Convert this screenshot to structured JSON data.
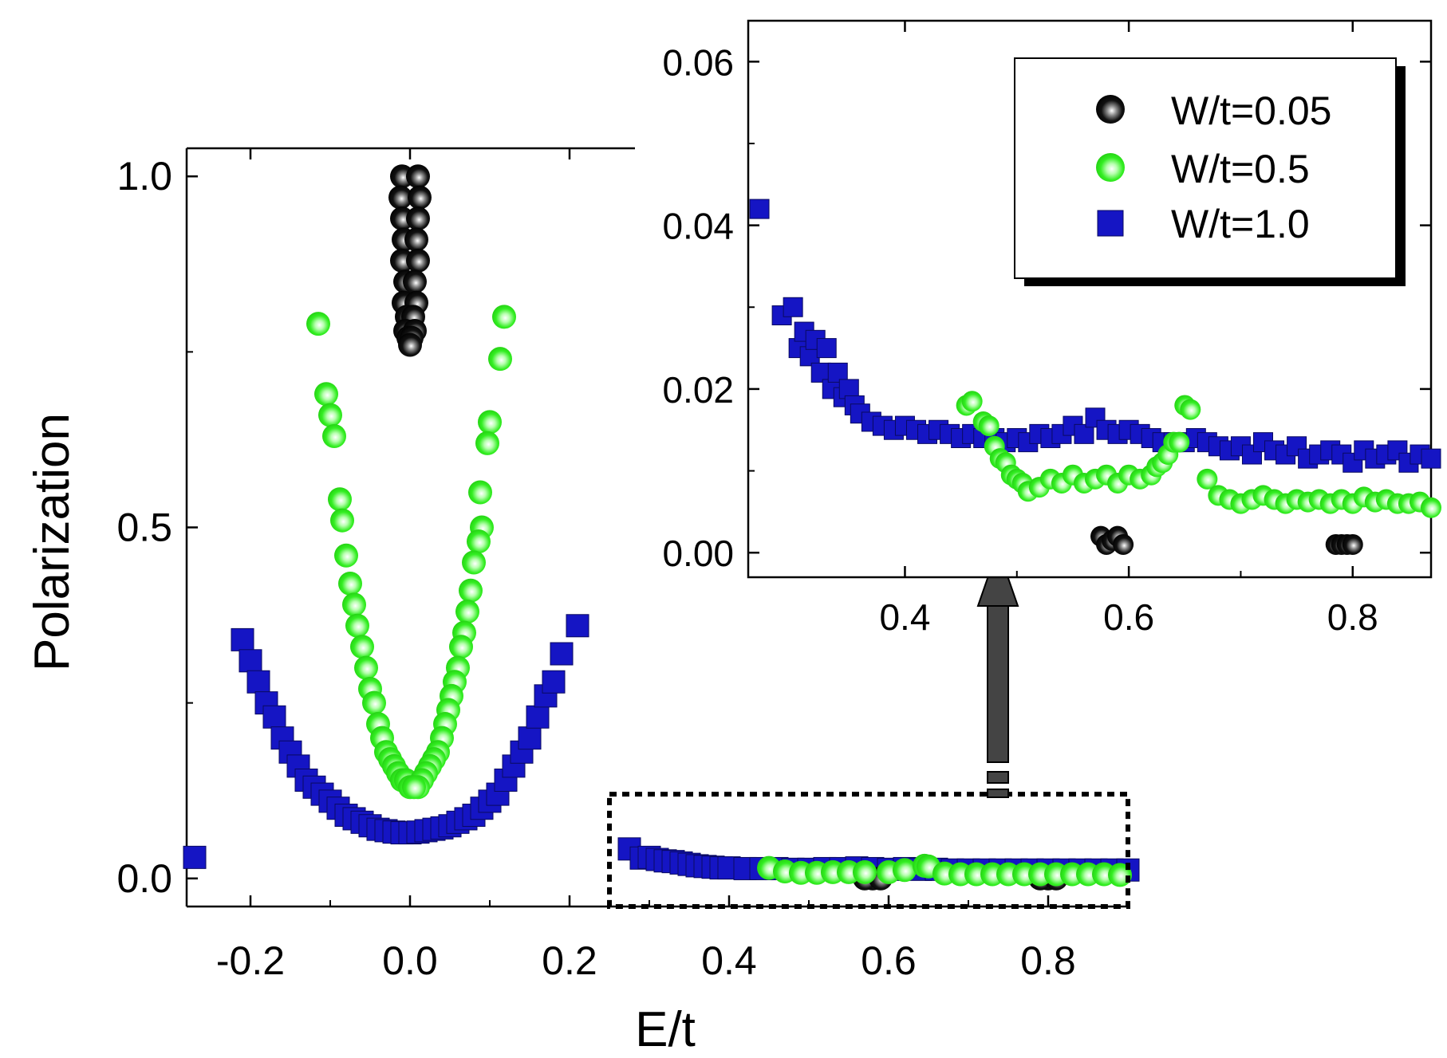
{
  "chart_data": [
    {
      "id": "main",
      "type": "scatter",
      "xlabel": "E/t",
      "ylabel": "Polarization",
      "xlim": [
        -0.28,
        0.9
      ],
      "ylim": [
        -0.04,
        1.04
      ],
      "xticks": [
        -0.2,
        0.0,
        0.2,
        0.4,
        0.6,
        0.8
      ],
      "xtick_labels": [
        "-0.2",
        "0.0",
        "0.2",
        "0.4",
        "0.6",
        "0.8"
      ],
      "yticks": [
        0.0,
        0.5,
        1.0
      ],
      "ytick_labels": [
        "0.0",
        "0.5",
        "1.0"
      ],
      "zoom_box": {
        "x": [
          0.25,
          0.9
        ],
        "y": [
          -0.04,
          0.12
        ]
      },
      "series": [
        {
          "name": "W/t=0.05",
          "marker": "circle",
          "color": "#000000",
          "x": [
            -0.01,
            0.01,
            -0.012,
            0.012,
            -0.01,
            0.01,
            -0.008,
            0.008,
            -0.01,
            0.01,
            -0.006,
            0.006,
            -0.008,
            0.008,
            -0.004,
            0.004,
            -0.006,
            0.006,
            -0.002,
            0.002,
            0.0,
            0.58,
            0.57,
            0.59,
            0.8,
            0.79,
            0.81
          ],
          "y": [
            1.0,
            1.0,
            0.97,
            0.97,
            0.94,
            0.94,
            0.91,
            0.91,
            0.88,
            0.88,
            0.85,
            0.85,
            0.82,
            0.82,
            0.8,
            0.8,
            0.78,
            0.78,
            0.77,
            0.77,
            0.76,
            0.0,
            0.0,
            0.0,
            0.0,
            0.0,
            0.0
          ]
        },
        {
          "name": "W/t=0.5",
          "marker": "circle",
          "color": "#22ee11",
          "x": [
            -0.115,
            0.118,
            -0.105,
            0.113,
            -0.1,
            0.1,
            -0.095,
            0.097,
            -0.088,
            0.088,
            -0.085,
            0.09,
            -0.08,
            0.086,
            -0.075,
            0.08,
            -0.07,
            0.076,
            -0.066,
            0.072,
            -0.06,
            0.068,
            -0.055,
            0.064,
            -0.05,
            0.06,
            -0.045,
            0.056,
            -0.04,
            0.052,
            -0.035,
            0.048,
            -0.03,
            0.044,
            -0.025,
            0.04,
            -0.02,
            0.035,
            -0.015,
            0.03,
            -0.01,
            0.025,
            -0.005,
            0.02,
            0.0,
            0.015,
            0.01,
            0.005,
            0.45,
            0.47,
            0.49,
            0.51,
            0.53,
            0.55,
            0.57,
            0.6,
            0.62,
            0.645,
            0.65,
            0.67,
            0.69,
            0.71,
            0.73,
            0.75,
            0.77,
            0.79,
            0.81,
            0.83,
            0.85,
            0.87,
            0.89
          ],
          "y": [
            0.79,
            0.8,
            0.69,
            0.74,
            0.66,
            0.65,
            0.63,
            0.62,
            0.54,
            0.55,
            0.51,
            0.5,
            0.46,
            0.48,
            0.42,
            0.45,
            0.39,
            0.41,
            0.36,
            0.38,
            0.33,
            0.35,
            0.3,
            0.33,
            0.27,
            0.3,
            0.25,
            0.28,
            0.22,
            0.26,
            0.2,
            0.24,
            0.18,
            0.22,
            0.17,
            0.2,
            0.16,
            0.18,
            0.15,
            0.17,
            0.14,
            0.16,
            0.14,
            0.15,
            0.13,
            0.14,
            0.13,
            0.13,
            0.015,
            0.01,
            0.008,
            0.008,
            0.009,
            0.009,
            0.009,
            0.009,
            0.012,
            0.018,
            0.017,
            0.007,
            0.006,
            0.006,
            0.006,
            0.006,
            0.006,
            0.006,
            0.006,
            0.006,
            0.006,
            0.006,
            0.005
          ]
        },
        {
          "name": "W/t=1.0",
          "marker": "square",
          "color": "#1515c4",
          "x": [
            -0.27,
            -0.21,
            -0.2,
            -0.19,
            -0.18,
            -0.17,
            -0.16,
            -0.15,
            -0.14,
            -0.13,
            -0.12,
            -0.11,
            -0.1,
            -0.09,
            -0.08,
            -0.07,
            -0.06,
            -0.05,
            -0.04,
            -0.03,
            -0.02,
            -0.01,
            0.0,
            0.01,
            0.02,
            0.03,
            0.04,
            0.05,
            0.06,
            0.07,
            0.08,
            0.09,
            0.1,
            0.11,
            0.12,
            0.13,
            0.14,
            0.15,
            0.16,
            0.17,
            0.18,
            0.19,
            0.21,
            0.275,
            0.29,
            0.3,
            0.31,
            0.32,
            0.33,
            0.34,
            0.35,
            0.36,
            0.37,
            0.38,
            0.39,
            0.4,
            0.42,
            0.44,
            0.46,
            0.48,
            0.5,
            0.52,
            0.54,
            0.56,
            0.58,
            0.6,
            0.62,
            0.64,
            0.66,
            0.68,
            0.7,
            0.72,
            0.74,
            0.76,
            0.78,
            0.8,
            0.82,
            0.84,
            0.86,
            0.88,
            0.9
          ],
          "y": [
            0.03,
            0.34,
            0.31,
            0.28,
            0.25,
            0.23,
            0.2,
            0.18,
            0.16,
            0.14,
            0.13,
            0.12,
            0.11,
            0.1,
            0.09,
            0.085,
            0.08,
            0.075,
            0.07,
            0.068,
            0.066,
            0.065,
            0.065,
            0.066,
            0.068,
            0.07,
            0.072,
            0.075,
            0.08,
            0.085,
            0.09,
            0.1,
            0.11,
            0.12,
            0.14,
            0.16,
            0.18,
            0.2,
            0.23,
            0.26,
            0.28,
            0.32,
            0.36,
            0.042,
            0.029,
            0.03,
            0.027,
            0.025,
            0.024,
            0.022,
            0.02,
            0.018,
            0.017,
            0.016,
            0.015,
            0.015,
            0.014,
            0.014,
            0.014,
            0.013,
            0.013,
            0.014,
            0.014,
            0.015,
            0.014,
            0.013,
            0.014,
            0.013,
            0.013,
            0.012,
            0.012,
            0.012,
            0.012,
            0.012,
            0.012,
            0.012,
            0.012,
            0.012,
            0.012,
            0.012,
            0.012
          ]
        }
      ]
    },
    {
      "id": "inset",
      "type": "scatter",
      "xlim": [
        0.26,
        0.87
      ],
      "ylim": [
        -0.003,
        0.065
      ],
      "xticks": [
        0.4,
        0.6,
        0.8
      ],
      "xtick_labels": [
        "0.4",
        "0.6",
        "0.8"
      ],
      "yticks": [
        0.0,
        0.02,
        0.04,
        0.06
      ],
      "ytick_labels": [
        "0.00",
        "0.02",
        "0.04",
        "0.06"
      ],
      "legend": {
        "position": "top-right",
        "entries": [
          "W/t=0.05",
          "W/t=0.5",
          "W/t=1.0"
        ]
      },
      "series": [
        {
          "name": "W/t=0.05",
          "marker": "circle",
          "color": "#000000",
          "x": [
            0.575,
            0.58,
            0.585,
            0.59,
            0.595,
            0.785,
            0.79,
            0.795,
            0.8
          ],
          "y": [
            0.002,
            0.001,
            0.0015,
            0.002,
            0.001,
            0.001,
            0.001,
            0.001,
            0.001
          ]
        },
        {
          "name": "W/t=0.5",
          "marker": "circle",
          "color": "#22ee11",
          "x": [
            0.455,
            0.46,
            0.47,
            0.475,
            0.48,
            0.485,
            0.49,
            0.495,
            0.5,
            0.505,
            0.51,
            0.52,
            0.53,
            0.54,
            0.55,
            0.56,
            0.57,
            0.58,
            0.59,
            0.6,
            0.61,
            0.62,
            0.625,
            0.63,
            0.635,
            0.64,
            0.645,
            0.65,
            0.655,
            0.67,
            0.68,
            0.69,
            0.7,
            0.71,
            0.72,
            0.73,
            0.74,
            0.75,
            0.76,
            0.77,
            0.78,
            0.79,
            0.8,
            0.81,
            0.82,
            0.83,
            0.84,
            0.85,
            0.86,
            0.87
          ],
          "y": [
            0.018,
            0.0185,
            0.016,
            0.0155,
            0.013,
            0.0115,
            0.011,
            0.0095,
            0.009,
            0.0085,
            0.0075,
            0.008,
            0.009,
            0.0085,
            0.0095,
            0.0085,
            0.009,
            0.0095,
            0.0085,
            0.0095,
            0.009,
            0.0095,
            0.0105,
            0.011,
            0.012,
            0.0135,
            0.0135,
            0.018,
            0.0175,
            0.009,
            0.007,
            0.0065,
            0.006,
            0.0065,
            0.007,
            0.0065,
            0.006,
            0.0065,
            0.0062,
            0.0065,
            0.006,
            0.0065,
            0.006,
            0.0068,
            0.0062,
            0.0065,
            0.006,
            0.006,
            0.0062,
            0.0055
          ]
        },
        {
          "name": "W/t=1.0",
          "marker": "square",
          "color": "#1515c4",
          "x": [
            0.27,
            0.29,
            0.3,
            0.305,
            0.31,
            0.315,
            0.32,
            0.325,
            0.33,
            0.335,
            0.34,
            0.345,
            0.35,
            0.355,
            0.36,
            0.37,
            0.38,
            0.39,
            0.4,
            0.41,
            0.42,
            0.43,
            0.44,
            0.45,
            0.46,
            0.47,
            0.48,
            0.49,
            0.5,
            0.51,
            0.52,
            0.53,
            0.54,
            0.55,
            0.56,
            0.57,
            0.58,
            0.59,
            0.6,
            0.61,
            0.62,
            0.63,
            0.64,
            0.65,
            0.66,
            0.67,
            0.68,
            0.69,
            0.7,
            0.71,
            0.72,
            0.73,
            0.74,
            0.75,
            0.76,
            0.77,
            0.78,
            0.79,
            0.8,
            0.81,
            0.82,
            0.83,
            0.84,
            0.85,
            0.86,
            0.87
          ],
          "y": [
            0.042,
            0.029,
            0.03,
            0.025,
            0.027,
            0.024,
            0.026,
            0.022,
            0.025,
            0.02,
            0.022,
            0.019,
            0.02,
            0.018,
            0.017,
            0.016,
            0.0155,
            0.015,
            0.0155,
            0.015,
            0.0145,
            0.015,
            0.0145,
            0.014,
            0.0145,
            0.014,
            0.014,
            0.0135,
            0.014,
            0.0135,
            0.0145,
            0.014,
            0.0145,
            0.0155,
            0.0145,
            0.0165,
            0.015,
            0.0145,
            0.015,
            0.0145,
            0.014,
            0.0135,
            0.0135,
            0.0135,
            0.014,
            0.0135,
            0.013,
            0.0125,
            0.013,
            0.012,
            0.0135,
            0.0125,
            0.012,
            0.013,
            0.0115,
            0.012,
            0.0125,
            0.012,
            0.011,
            0.0125,
            0.0115,
            0.012,
            0.0125,
            0.011,
            0.012,
            0.0115
          ]
        }
      ]
    }
  ]
}
